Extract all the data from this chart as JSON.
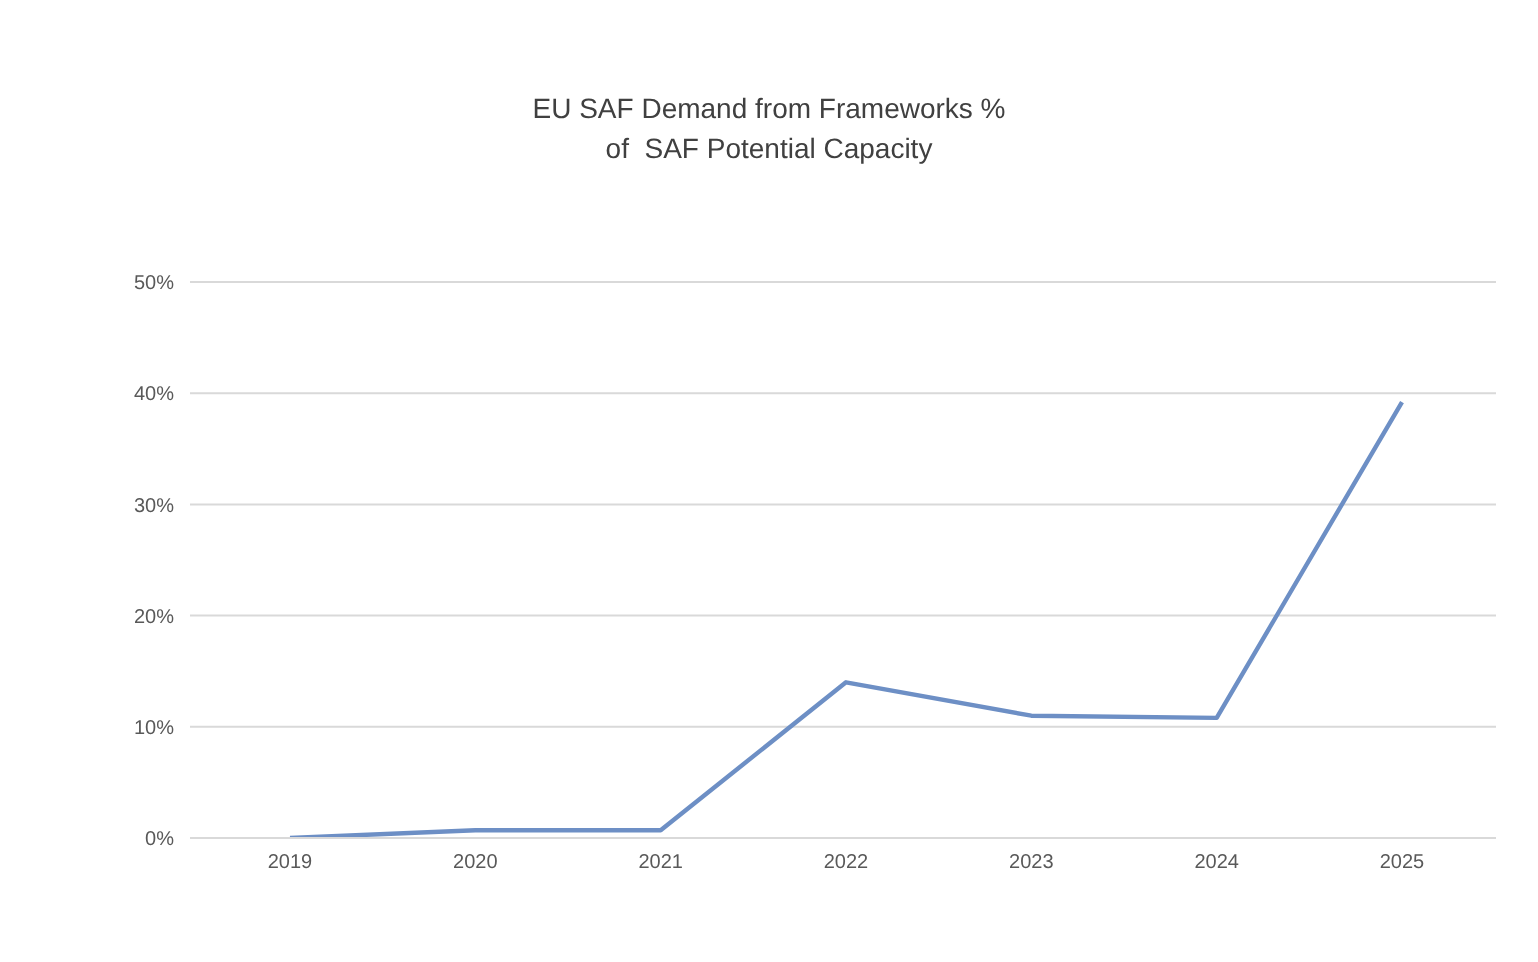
{
  "chart_data": {
    "type": "line",
    "title": "EU SAF Demand from Frameworks %\nof  SAF Potential Capacity",
    "categories": [
      "2019",
      "2020",
      "2021",
      "2022",
      "2023",
      "2024",
      "2025"
    ],
    "series": [
      {
        "color": "#6d8fc5",
        "values": [
          0,
          0.7,
          0.7,
          14.0,
          11.0,
          10.8,
          39.2
        ]
      }
    ],
    "ylim": [
      0,
      50
    ],
    "yticks": [
      {
        "value": 0,
        "label": "0%"
      },
      {
        "value": 10,
        "label": "10%"
      },
      {
        "value": 20,
        "label": "20%"
      },
      {
        "value": 30,
        "label": "30%"
      },
      {
        "value": 40,
        "label": "40%"
      },
      {
        "value": 50,
        "label": "50%"
      }
    ],
    "grid": "y",
    "legend": false,
    "marker": "none",
    "line_style": "solid"
  }
}
